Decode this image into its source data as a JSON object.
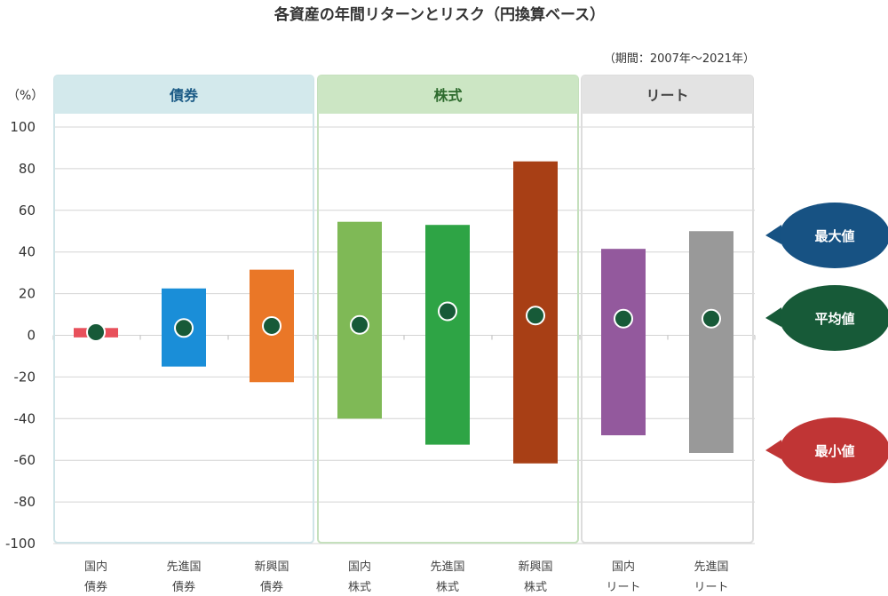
{
  "chart_data": {
    "type": "range-bar",
    "title": "各資産の年間リターンとリスク（円換算ベース）",
    "period": "（期間：2007年〜2021年）",
    "y_unit": "（%）",
    "ylim": [
      -100,
      100
    ],
    "y_ticks": [
      100,
      80,
      60,
      40,
      20,
      0,
      -20,
      -40,
      -60,
      -80,
      -100
    ],
    "groups": [
      {
        "name": "債券",
        "header_color": "#d3e9ec",
        "text_color": "#1a5a85",
        "border_color": "#cfe4e8",
        "categories": [
          0,
          1,
          2
        ]
      },
      {
        "name": "株式",
        "header_color": "#cce6c4",
        "text_color": "#2e6b2e",
        "border_color": "#c5e0bd",
        "categories": [
          3,
          4,
          5
        ]
      },
      {
        "name": "リート",
        "header_color": "#e3e3e3",
        "text_color": "#444444",
        "border_color": "#dddddd",
        "categories": [
          6,
          7
        ]
      }
    ],
    "categories": [
      {
        "line1": "国内",
        "line2": "債券",
        "max": 3.5,
        "avg": 1.5,
        "min": -1.0,
        "color": "#e8505b"
      },
      {
        "line1": "先進国",
        "line2": "債券",
        "max": 22.5,
        "avg": 3.5,
        "min": -15.0,
        "color": "#1a8ed8"
      },
      {
        "line1": "新興国",
        "line2": "債券",
        "max": 31.5,
        "avg": 4.5,
        "min": -22.5,
        "color": "#ea7727"
      },
      {
        "line1": "国内",
        "line2": "株式",
        "max": 54.5,
        "avg": 5.0,
        "min": -40.0,
        "color": "#7fb956"
      },
      {
        "line1": "先進国",
        "line2": "株式",
        "max": 53.0,
        "avg": 11.5,
        "min": -52.5,
        "color": "#2ea445"
      },
      {
        "line1": "新興国",
        "line2": "株式",
        "max": 83.5,
        "avg": 9.5,
        "min": -61.5,
        "color": "#a83f15"
      },
      {
        "line1": "国内",
        "line2": "リート",
        "max": 41.5,
        "avg": 8.0,
        "min": -48.0,
        "color": "#93599d"
      },
      {
        "line1": "先進国",
        "line2": "リート",
        "max": 50.0,
        "avg": 8.0,
        "min": -56.5,
        "color": "#999999"
      }
    ],
    "avg_marker_color": "#175a38",
    "legend": [
      {
        "label": "最大値",
        "color": "#175283"
      },
      {
        "label": "平均値",
        "color": "#175a38"
      },
      {
        "label": "最小値",
        "color": "#c03535"
      }
    ]
  }
}
